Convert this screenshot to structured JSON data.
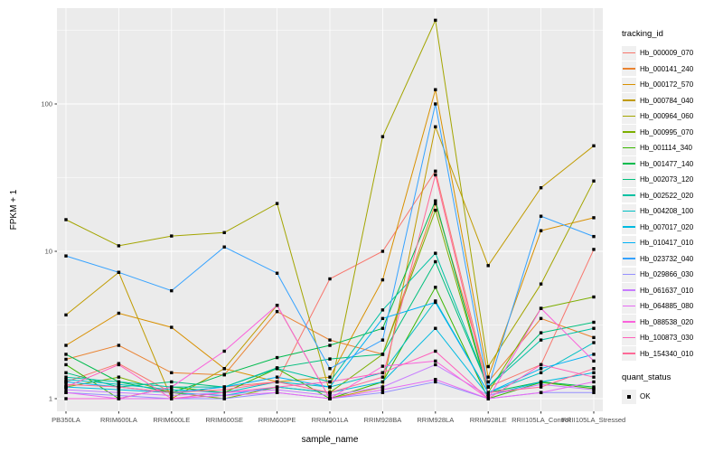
{
  "chart_data": {
    "type": "line",
    "title": "",
    "xlabel": "sample_name",
    "ylabel": "FPKM + 1",
    "y_scale": "log10",
    "y_ticks": [
      1,
      10,
      100
    ],
    "ylim": [
      0.8,
      500
    ],
    "grid": "on",
    "legend_position": "right",
    "legend_title": "tracking_id",
    "panel_bg": "#EBEBEB",
    "grid_color": "#FFFFFF",
    "tick_label_color": "#4D4D4D",
    "point_color": "#000000",
    "point_legend": {
      "title": "quant_status",
      "items": [
        {
          "label": "OK"
        }
      ]
    },
    "categories": [
      "PB350LA",
      "RRIM600LA",
      "RRIM600LE",
      "RRIM600SE",
      "RRIM600PE",
      "RRIM901LA",
      "RRIM928BA",
      "RRIM928LA",
      "RRIM928LE",
      "RRII105LA_Control",
      "RRII105LA_Stressed"
    ],
    "series": [
      {
        "name": "Hb_000009_070",
        "color": "#F8766D",
        "values": [
          1.3,
          1.73,
          1.1,
          1.2,
          1.3,
          6.5,
          10.0,
          35,
          1.2,
          1.7,
          10.3
        ]
      },
      {
        "name": "Hb_000141_240",
        "color": "#EA8331",
        "values": [
          1.85,
          2.3,
          1.5,
          1.45,
          3.9,
          2.5,
          2.0,
          21,
          1.3,
          3.5,
          2.6
        ]
      },
      {
        "name": "Hb_000172_570",
        "color": "#D89000",
        "values": [
          2.3,
          3.8,
          3.05,
          1.6,
          1.3,
          1.4,
          6.4,
          125,
          1.4,
          13.8,
          16.9
        ]
      },
      {
        "name": "Hb_000784_040",
        "color": "#C09B00",
        "values": [
          3.7,
          7.2,
          1.0,
          1.6,
          4.3,
          1.0,
          1.2,
          70,
          8.0,
          27,
          52
        ]
      },
      {
        "name": "Hb_000964_060",
        "color": "#A3A500",
        "values": [
          16.4,
          10.9,
          12.7,
          13.4,
          21.1,
          1.1,
          60,
          370,
          1.65,
          6.0,
          30
        ]
      },
      {
        "name": "Hb_000995_070",
        "color": "#7CAE00",
        "values": [
          1.2,
          1.4,
          1.1,
          1.0,
          1.2,
          1.1,
          2.0,
          19,
          1.1,
          4.1,
          4.9
        ]
      },
      {
        "name": "Hb_001114_340",
        "color": "#39B600",
        "values": [
          1.7,
          1.0,
          1.2,
          1.1,
          1.6,
          1.0,
          1.3,
          5.7,
          1.0,
          1.29,
          1.17
        ]
      },
      {
        "name": "Hb_001477_140",
        "color": "#00BB4E",
        "values": [
          2.0,
          1.3,
          1.1,
          1.46,
          1.9,
          2.3,
          3.0,
          22,
          1.1,
          1.3,
          1.2
        ]
      },
      {
        "name": "Hb_002073_120",
        "color": "#00BF7D",
        "values": [
          1.5,
          1.2,
          1.3,
          1.2,
          1.62,
          1.86,
          2.0,
          8.5,
          1.2,
          2.8,
          3.3
        ]
      },
      {
        "name": "Hb_002522_020",
        "color": "#00C1A3",
        "values": [
          1.4,
          1.3,
          1.2,
          1.2,
          1.6,
          1.3,
          4.0,
          9.7,
          1.2,
          2.5,
          3.0
        ]
      },
      {
        "name": "Hb_004208_100",
        "color": "#00BFC4",
        "values": [
          1.35,
          1.25,
          1.15,
          1.1,
          1.3,
          1.2,
          1.5,
          4.6,
          1.1,
          1.5,
          2.4
        ]
      },
      {
        "name": "Hb_007017_020",
        "color": "#00BAE0",
        "values": [
          1.2,
          1.15,
          1.1,
          1.05,
          1.2,
          1.1,
          1.3,
          3.0,
          1.05,
          1.3,
          1.5
        ]
      },
      {
        "name": "Hb_010417_010",
        "color": "#00B0F6",
        "values": [
          1.3,
          1.2,
          1.1,
          1.2,
          1.4,
          1.2,
          3.5,
          4.5,
          1.1,
          1.6,
          2.0
        ]
      },
      {
        "name": "Hb_023732_040",
        "color": "#35A2FF",
        "values": [
          9.3,
          7.2,
          5.4,
          10.7,
          7.1,
          1.6,
          2.5,
          100,
          1.2,
          17.3,
          12.6
        ]
      },
      {
        "name": "Hb_029866_030",
        "color": "#9590FF",
        "values": [
          1.1,
          1.05,
          1.0,
          1.0,
          1.1,
          1.0,
          1.1,
          1.3,
          1.0,
          1.1,
          1.1
        ]
      },
      {
        "name": "Hb_061637_010",
        "color": "#C77CFF",
        "values": [
          1.15,
          1.1,
          1.05,
          1.1,
          1.15,
          1.05,
          1.2,
          1.7,
          1.05,
          1.25,
          1.15
        ]
      },
      {
        "name": "Hb_064885_080",
        "color": "#E76BF3",
        "values": [
          1.1,
          1.0,
          1.0,
          1.05,
          1.1,
          1.0,
          1.15,
          1.35,
          1.0,
          1.1,
          1.3
        ]
      },
      {
        "name": "Hb_088538_020",
        "color": "#FA62DB",
        "values": [
          1.0,
          1.0,
          1.2,
          2.1,
          4.3,
          1.0,
          1.66,
          1.8,
          1.0,
          4.1,
          1.8
        ]
      },
      {
        "name": "Hb_100873_030",
        "color": "#FF62BC",
        "values": [
          1.2,
          1.7,
          1.0,
          1.1,
          1.2,
          1.3,
          1.5,
          2.1,
          1.0,
          1.7,
          1.4
        ]
      },
      {
        "name": "Hb_154340_010",
        "color": "#FF6A98",
        "values": [
          1.25,
          1.2,
          1.1,
          1.15,
          1.3,
          1.1,
          1.4,
          33,
          1.1,
          1.2,
          1.6
        ]
      }
    ]
  }
}
